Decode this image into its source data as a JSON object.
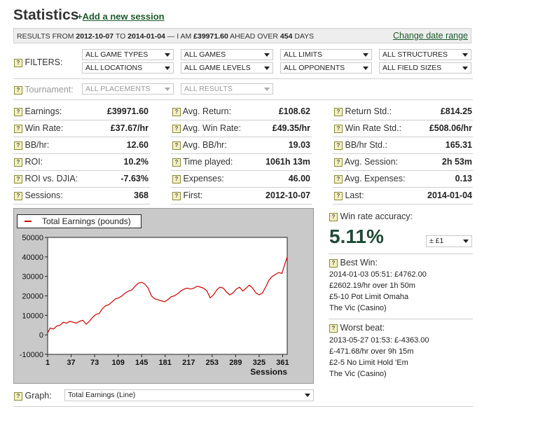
{
  "header": {
    "title": "Statistics",
    "add_prefix": "+",
    "add_link": "Add a new session"
  },
  "results": {
    "p1": "RESULTS FROM ",
    "start": "2012-10-07",
    "p2": " TO ",
    "end": "2014-01-04",
    "p3": " — I AM ",
    "amount": "£39971.60",
    "p4": " AHEAD OVER ",
    "days": "454",
    "p5": " DAYS",
    "change_link": "Change date range"
  },
  "help_glyph": "?",
  "filters": {
    "label": "FILTERS:",
    "row1": [
      "ALL GAME TYPES",
      "ALL GAMES",
      "ALL LIMITS",
      "ALL STRUCTURES"
    ],
    "row2": [
      "ALL LOCATIONS",
      "ALL GAME LEVELS",
      "ALL OPPONENTS",
      "ALL FIELD SIZES"
    ],
    "tournament_label": "Tournament:",
    "tournament": [
      "ALL PLACEMENTS",
      "ALL RESULTS"
    ]
  },
  "stats": [
    [
      {
        "label": "Earnings:",
        "value": "£39971.60"
      },
      {
        "label": "Avg. Return:",
        "value": "£108.62"
      },
      {
        "label": "Return Std.:",
        "value": "£814.25"
      }
    ],
    [
      {
        "label": "Win Rate:",
        "value": "£37.67/hr"
      },
      {
        "label": "Avg. Win Rate:",
        "value": "£49.35/hr"
      },
      {
        "label": "Win Rate Std.:",
        "value": "£508.06/hr"
      }
    ],
    [
      {
        "label": "BB/hr:",
        "value": "12.60"
      },
      {
        "label": "Avg. BB/hr:",
        "value": "19.03"
      },
      {
        "label": "BB/hr Std.:",
        "value": "165.31"
      }
    ],
    [
      {
        "label": "ROI:",
        "value": "10.2%"
      },
      {
        "label": "Time played:",
        "value": "1061h 13m"
      },
      {
        "label": "Avg. Session:",
        "value": "2h 53m"
      }
    ],
    [
      {
        "label": "ROI vs. DJIA:",
        "value": "-7.63%"
      },
      {
        "label": "Expenses:",
        "value": "46.00"
      },
      {
        "label": "Avg. Expenses:",
        "value": "0.13"
      }
    ],
    [
      {
        "label": "Sessions:",
        "value": "368"
      },
      {
        "label": "First:",
        "value": "2012-10-07"
      },
      {
        "label": "Last:",
        "value": "2014-01-04"
      }
    ]
  ],
  "accuracy": {
    "label": "Win rate accuracy:",
    "value": "5.11%",
    "select": "± £1"
  },
  "best_win": {
    "label": "Best Win:",
    "lines": [
      "2014-01-03 05:51: £4762.00",
      "£2602.19/hr over 1h 50m",
      "£5-10 Pot Limit Omaha",
      "The Vic (Casino)"
    ]
  },
  "worst_beat": {
    "label": "Worst beat:",
    "lines": [
      "2013-05-27 01:53: £-4363.00",
      "£-471.68/hr over 9h 15m",
      "£2-5 No Limit Hold 'Em",
      "The Vic (Casino)"
    ]
  },
  "graph": {
    "label": "Graph:",
    "select": "Total Earnings (Line)"
  },
  "colors": {
    "line": "#cc0000",
    "link": "#1d5a2c",
    "accent": "#1f4a36",
    "chart_bg": "#c9c9c9"
  },
  "chart_data": {
    "type": "line",
    "title": "",
    "xlabel": "Sessions",
    "ylabel": "",
    "xlim": [
      1,
      368
    ],
    "ylim": [
      -10000,
      50000
    ],
    "xticks": [
      1,
      37,
      73,
      109,
      145,
      181,
      217,
      253,
      289,
      325,
      361
    ],
    "yticks": [
      -10000,
      0,
      10000,
      20000,
      30000,
      40000,
      50000
    ],
    "grid": false,
    "legend_position": "top-left",
    "series": [
      {
        "name": "Total Earnings (pounds)",
        "x": [
          1,
          5,
          10,
          15,
          20,
          25,
          30,
          35,
          40,
          45,
          50,
          55,
          60,
          65,
          70,
          75,
          80,
          85,
          90,
          95,
          100,
          105,
          110,
          115,
          120,
          125,
          130,
          135,
          140,
          145,
          150,
          155,
          160,
          165,
          170,
          175,
          180,
          185,
          190,
          195,
          200,
          205,
          210,
          215,
          220,
          225,
          230,
          235,
          240,
          245,
          250,
          255,
          260,
          265,
          270,
          275,
          280,
          285,
          290,
          295,
          300,
          305,
          310,
          315,
          320,
          325,
          330,
          335,
          340,
          345,
          350,
          355,
          360,
          364,
          368
        ],
        "y": [
          1000,
          3500,
          3000,
          4500,
          5000,
          6500,
          6000,
          7000,
          6500,
          6000,
          7000,
          7500,
          5500,
          7000,
          9000,
          10500,
          11000,
          13500,
          15000,
          15500,
          17000,
          18500,
          19000,
          20000,
          21500,
          22500,
          23000,
          25000,
          26500,
          27000,
          26000,
          24000,
          20000,
          18500,
          18000,
          17500,
          17000,
          18000,
          19500,
          20000,
          21000,
          22500,
          23500,
          24000,
          23500,
          24000,
          25000,
          24500,
          24000,
          22500,
          19000,
          20500,
          23000,
          24500,
          24000,
          22000,
          20500,
          21500,
          23500,
          24500,
          22500,
          24000,
          25500,
          24000,
          21500,
          20500,
          21500,
          24500,
          28000,
          30000,
          31000,
          32000,
          31500,
          36000,
          39971.6
        ]
      }
    ]
  }
}
